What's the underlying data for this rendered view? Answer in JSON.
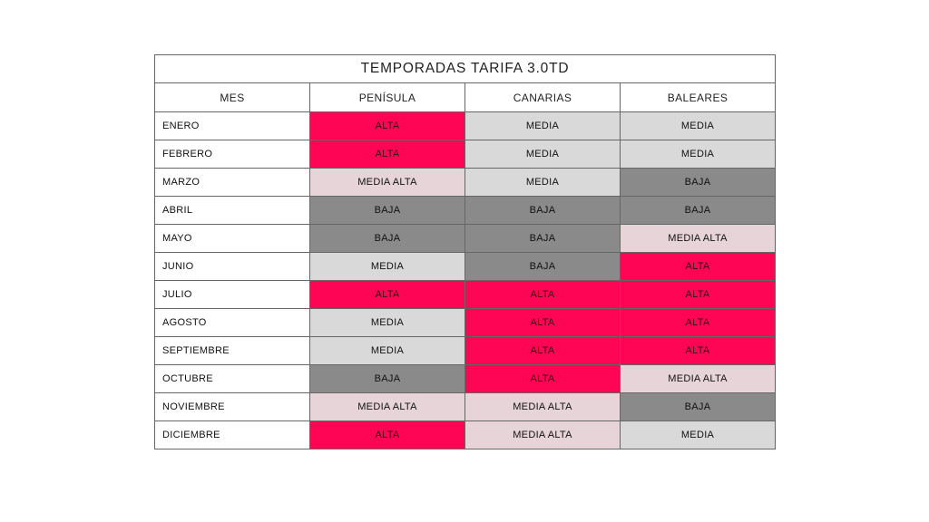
{
  "title": "TEMPORADAS TARIFA 3.0TD",
  "headers": [
    "MES",
    "PENÍSULA",
    "CANARIAS",
    "BALEARES"
  ],
  "colors": {
    "ALTA": "#ff0556",
    "MEDIA": "#d9d9d9",
    "MEDIA ALTA": "#e7d4d9",
    "BAJA": "#8a8a8a"
  },
  "rows": [
    {
      "month": "ENERO",
      "values": [
        "ALTA",
        "MEDIA",
        "MEDIA"
      ]
    },
    {
      "month": "FEBRERO",
      "values": [
        "ALTA",
        "MEDIA",
        "MEDIA"
      ]
    },
    {
      "month": "MARZO",
      "values": [
        "MEDIA ALTA",
        "MEDIA",
        "BAJA"
      ]
    },
    {
      "month": "ABRIL",
      "values": [
        "BAJA",
        "BAJA",
        "BAJA"
      ]
    },
    {
      "month": "MAYO",
      "values": [
        "BAJA",
        "BAJA",
        "MEDIA ALTA"
      ]
    },
    {
      "month": "JUNIO",
      "values": [
        "MEDIA",
        "BAJA",
        "ALTA"
      ]
    },
    {
      "month": "JULIO",
      "values": [
        "ALTA",
        "ALTA",
        "ALTA"
      ]
    },
    {
      "month": "AGOSTO",
      "values": [
        "MEDIA",
        "ALTA",
        "ALTA"
      ]
    },
    {
      "month": "SEPTIEMBRE",
      "values": [
        "MEDIA",
        "ALTA",
        "ALTA"
      ]
    },
    {
      "month": "OCTUBRE",
      "values": [
        "BAJA",
        "ALTA",
        "MEDIA ALTA"
      ]
    },
    {
      "month": "NOVIEMBRE",
      "values": [
        "MEDIA ALTA",
        "MEDIA ALTA",
        "BAJA"
      ]
    },
    {
      "month": "DICIEMBRE",
      "values": [
        "ALTA",
        "MEDIA ALTA",
        "MEDIA"
      ]
    }
  ]
}
